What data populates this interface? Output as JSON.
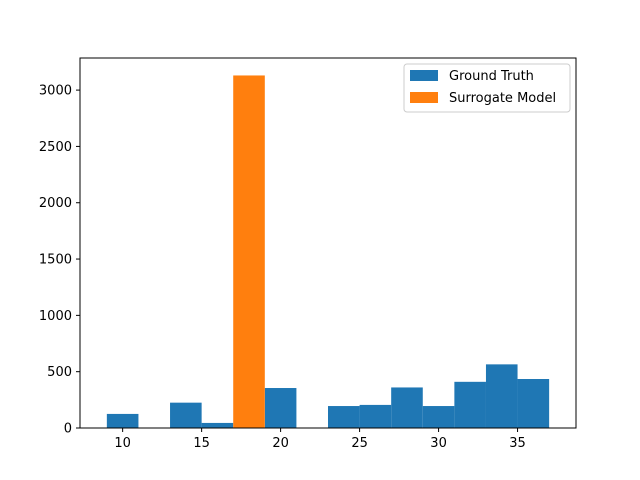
{
  "chart_data": {
    "type": "bar",
    "title": "",
    "xlabel": "",
    "ylabel": "",
    "xlim": [
      7.3,
      38.7
    ],
    "ylim": [
      0,
      3285
    ],
    "xticks": [
      10,
      15,
      20,
      25,
      30,
      35
    ],
    "yticks": [
      0,
      500,
      1000,
      1500,
      2000,
      2500,
      3000
    ],
    "grid": false,
    "legend_position": "top-right",
    "series": [
      {
        "name": "Ground Truth",
        "color": "#1f77b4",
        "bins": [
          {
            "x0": 9.0,
            "x1": 11.0,
            "value": 125
          },
          {
            "x0": 11.0,
            "x1": 13.0,
            "value": 0
          },
          {
            "x0": 13.0,
            "x1": 15.0,
            "value": 225
          },
          {
            "x0": 15.0,
            "x1": 17.0,
            "value": 45
          },
          {
            "x0": 17.0,
            "x1": 19.0,
            "value": 0
          },
          {
            "x0": 19.0,
            "x1": 21.0,
            "value": 355
          },
          {
            "x0": 21.0,
            "x1": 23.0,
            "value": 0
          },
          {
            "x0": 23.0,
            "x1": 25.0,
            "value": 195
          },
          {
            "x0": 25.0,
            "x1": 27.0,
            "value": 205
          },
          {
            "x0": 27.0,
            "x1": 29.0,
            "value": 360
          },
          {
            "x0": 29.0,
            "x1": 31.0,
            "value": 195
          },
          {
            "x0": 31.0,
            "x1": 33.0,
            "value": 410
          },
          {
            "x0": 33.0,
            "x1": 35.0,
            "value": 565
          },
          {
            "x0": 35.0,
            "x1": 37.0,
            "value": 435
          }
        ]
      },
      {
        "name": "Surrogate Model",
        "color": "#ff7f0e",
        "bins": [
          {
            "x0": 17.0,
            "x1": 19.0,
            "value": 3130
          }
        ]
      }
    ]
  }
}
